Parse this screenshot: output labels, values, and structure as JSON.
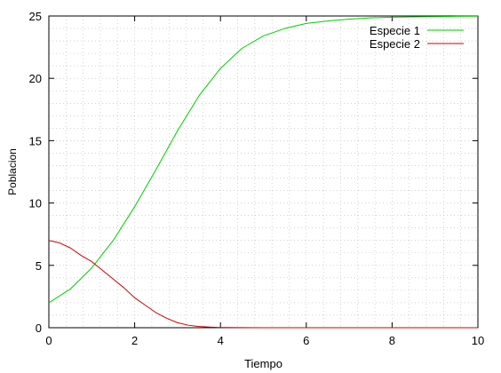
{
  "chart_data": {
    "type": "line",
    "title": "",
    "xlabel": "Tiempo",
    "ylabel": "Poblacion",
    "xlim": [
      0,
      10
    ],
    "ylim": [
      0,
      25
    ],
    "grid": true,
    "legend_position": "top-right",
    "x_ticks": [
      0,
      2,
      4,
      6,
      8,
      10
    ],
    "y_ticks": [
      0,
      5,
      10,
      15,
      20,
      25
    ],
    "series": [
      {
        "name": "Especie 1",
        "color": "#00cc00",
        "x": [
          0,
          0.5,
          1,
          1.5,
          2,
          2.5,
          3,
          3.5,
          4,
          4.5,
          5,
          5.5,
          6,
          6.5,
          7,
          7.5,
          8,
          8.5,
          9,
          9.5,
          10
        ],
        "y": [
          2.0,
          3.1,
          4.8,
          7.0,
          9.7,
          12.7,
          15.8,
          18.6,
          20.8,
          22.4,
          23.4,
          24.0,
          24.4,
          24.6,
          24.75,
          24.85,
          24.9,
          24.93,
          24.95,
          24.97,
          24.98
        ]
      },
      {
        "name": "Especie 2",
        "color": "#cc0000",
        "x": [
          0,
          0.25,
          0.5,
          0.75,
          1,
          1.25,
          1.5,
          1.75,
          2,
          2.25,
          2.5,
          2.75,
          3,
          3.25,
          3.5,
          3.75,
          4,
          4.5,
          5,
          6,
          7,
          8,
          9,
          10
        ],
        "y": [
          7.0,
          6.8,
          6.4,
          5.8,
          5.3,
          4.6,
          3.9,
          3.2,
          2.4,
          1.8,
          1.2,
          0.75,
          0.4,
          0.2,
          0.1,
          0.05,
          0.02,
          0.01,
          0,
          0,
          0,
          0,
          0,
          0
        ]
      }
    ]
  }
}
